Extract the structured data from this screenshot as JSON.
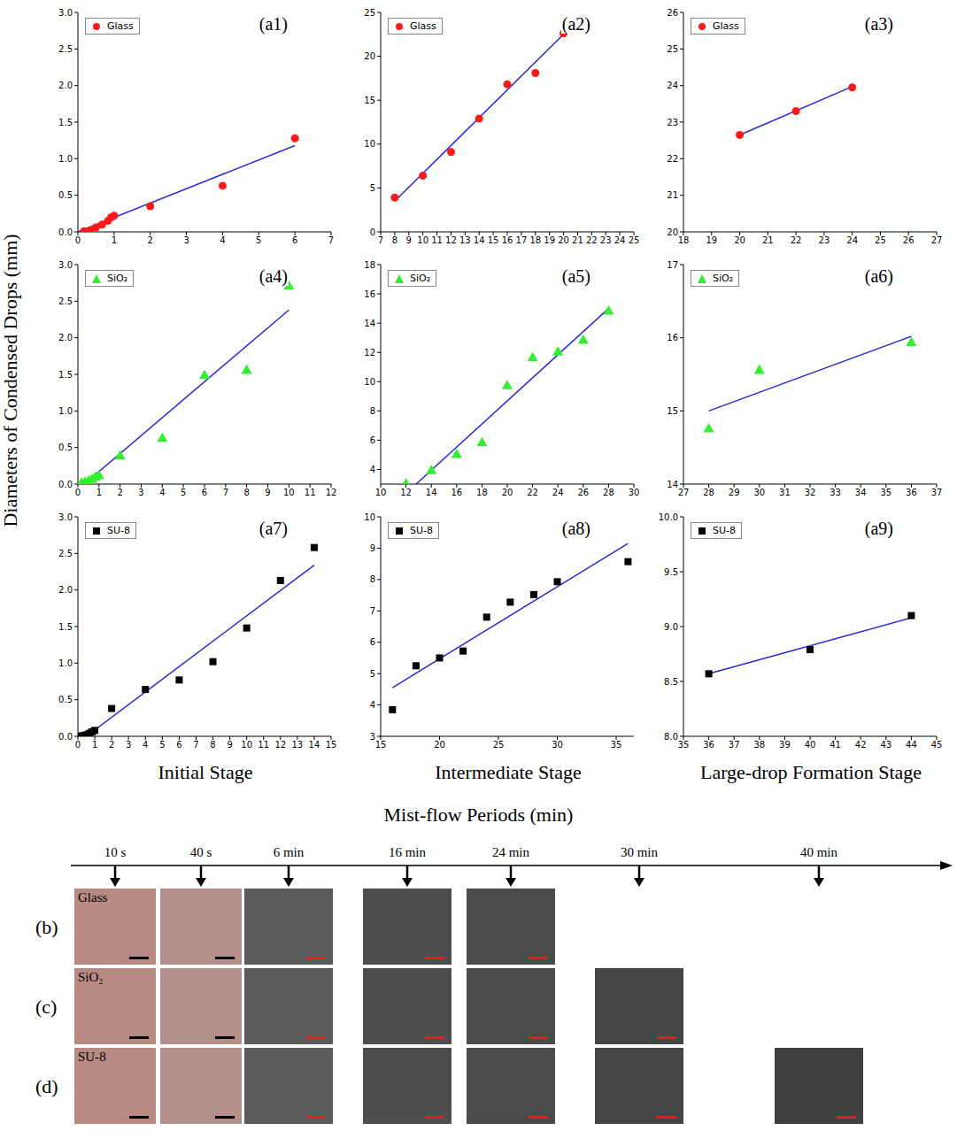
{
  "y_label": "Diameters of Condensed Drops (mm)",
  "stage_labels": [
    "Initial Stage",
    "Intermediate Stage",
    "Large-drop Formation Stage"
  ],
  "x_label": "Mist-flow Periods (min)",
  "timeline": [
    "10 s",
    "40 s",
    "6 min",
    "16 min",
    "24 min",
    "30 min",
    "40 min"
  ],
  "photo_rows": [
    {
      "label": "(b)",
      "substrate": "Glass",
      "photos_at": [
        "10 s",
        "40 s",
        "6 min",
        "16 min",
        "24 min"
      ]
    },
    {
      "label": "(c)",
      "substrate": "SiO₂",
      "photos_at": [
        "10 s",
        "40 s",
        "6 min",
        "16 min",
        "24 min",
        "30 min"
      ]
    },
    {
      "label": "(d)",
      "substrate": "SU-8",
      "photos_at": [
        "10 s",
        "40 s",
        "6 min",
        "16 min",
        "24 min",
        "30 min",
        "40 min"
      ]
    }
  ],
  "chart_data": [
    {
      "type": "scatter",
      "annotation": "(a1)",
      "legend": "upper left",
      "grid": false,
      "xlim": [
        0,
        7
      ],
      "xticks": [
        0,
        1,
        2,
        3,
        4,
        5,
        6,
        7
      ],
      "ylim": [
        0,
        3
      ],
      "yticks": [
        {
          "value": 0,
          "label": "0.0"
        },
        0.5,
        {
          "value": 1,
          "label": "1.0"
        },
        1.5,
        {
          "value": 2,
          "label": "2.0"
        },
        2.5,
        {
          "value": 3,
          "label": "3.0"
        }
      ],
      "series": [
        {
          "name": "Glass",
          "type": "scatter",
          "marker": "circle",
          "color": "#ff1a1a",
          "x": [
            0.17,
            0.33,
            0.5,
            0.67,
            0.83,
            0.92,
            1,
            2,
            4,
            6
          ],
          "values": [
            0.01,
            0.02,
            0.06,
            0.1,
            0.15,
            0.2,
            0.22,
            0.35,
            0.63,
            1.28
          ]
        },
        {
          "type": "line",
          "line_style": "solid",
          "color": "#2a2ad4",
          "x": [
            0,
            6
          ],
          "values": [
            0,
            1.18
          ]
        }
      ]
    },
    {
      "type": "scatter",
      "annotation": "(a2)",
      "legend": "upper left",
      "grid": false,
      "xlim": [
        7,
        25
      ],
      "xticks": [
        7,
        8,
        9,
        10,
        11,
        12,
        13,
        14,
        15,
        16,
        17,
        18,
        19,
        20,
        21,
        22,
        23,
        24,
        25
      ],
      "ylim": [
        0,
        25
      ],
      "yticks": [
        0,
        5,
        10,
        15,
        20,
        25
      ],
      "series": [
        {
          "name": "Glass",
          "type": "scatter",
          "marker": "circle",
          "color": "#ff1a1a",
          "x": [
            8,
            10,
            12,
            14,
            16,
            18,
            20
          ],
          "values": [
            3.9,
            6.4,
            9.1,
            12.9,
            16.8,
            18.1,
            22.6
          ]
        },
        {
          "type": "line",
          "line_style": "solid",
          "color": "#2a2ad4",
          "x": [
            8,
            20
          ],
          "values": [
            3.5,
            22.5
          ]
        }
      ]
    },
    {
      "type": "scatter",
      "annotation": "(a3)",
      "legend": "upper left",
      "grid": false,
      "xlim": [
        18,
        27
      ],
      "xticks": [
        18,
        19,
        20,
        21,
        22,
        23,
        24,
        25,
        26,
        27
      ],
      "ylim": [
        20,
        26
      ],
      "yticks": [
        20,
        21,
        22,
        23,
        24,
        25,
        26
      ],
      "series": [
        {
          "name": "Glass",
          "type": "scatter",
          "marker": "circle",
          "color": "#ff1a1a",
          "x": [
            20,
            22,
            24
          ],
          "values": [
            22.65,
            23.3,
            23.95
          ]
        },
        {
          "type": "line",
          "line_style": "solid",
          "color": "#2a2ad4",
          "x": [
            20,
            24
          ],
          "values": [
            22.65,
            23.97
          ]
        }
      ]
    },
    {
      "type": "scatter",
      "annotation": "(a4)",
      "legend": "upper left",
      "grid": false,
      "xlim": [
        0,
        12
      ],
      "xticks": [
        0,
        1,
        2,
        3,
        4,
        5,
        6,
        7,
        8,
        9,
        10,
        11,
        12
      ],
      "ylim": [
        0,
        3
      ],
      "yticks": [
        {
          "value": 0,
          "label": "0.0"
        },
        0.5,
        {
          "value": 1,
          "label": "1.0"
        },
        1.5,
        {
          "value": 2,
          "label": "2.0"
        },
        2.5,
        {
          "value": 3,
          "label": "3.0"
        }
      ],
      "series": [
        {
          "name": "SiO₂",
          "type": "scatter",
          "marker": "triangle",
          "color": "#33ee33",
          "x": [
            0.17,
            0.33,
            0.5,
            0.67,
            0.83,
            1,
            2,
            4,
            6,
            8,
            10
          ],
          "values": [
            0.01,
            0.02,
            0.04,
            0.06,
            0.09,
            0.11,
            0.38,
            0.62,
            1.48,
            1.55,
            2.7
          ]
        },
        {
          "type": "line",
          "line_style": "solid",
          "color": "#2a2ad4",
          "x": [
            0.3,
            10
          ],
          "values": [
            0,
            2.38
          ]
        }
      ]
    },
    {
      "type": "scatter",
      "annotation": "(a5)",
      "legend": "upper left",
      "grid": false,
      "xlim": [
        10,
        30
      ],
      "xticks": [
        10,
        12,
        14,
        16,
        18,
        20,
        22,
        24,
        26,
        28,
        30
      ],
      "ylim": [
        3,
        18
      ],
      "yticks": [
        4,
        6,
        8,
        10,
        12,
        14,
        16,
        18
      ],
      "series": [
        {
          "name": "SiO₂",
          "type": "scatter",
          "marker": "triangle",
          "color": "#33ee33",
          "x": [
            12,
            14,
            16,
            18,
            20,
            22,
            24,
            26,
            28
          ],
          "values": [
            3.0,
            3.9,
            5.0,
            5.8,
            9.7,
            11.6,
            12.0,
            12.8,
            14.8
          ]
        },
        {
          "type": "line",
          "line_style": "solid",
          "color": "#2a2ad4",
          "x": [
            12.8,
            28
          ],
          "values": [
            3,
            15
          ]
        }
      ]
    },
    {
      "type": "scatter",
      "annotation": "(a6)",
      "legend": "upper left",
      "grid": false,
      "xlim": [
        27,
        37
      ],
      "xticks": [
        27,
        28,
        29,
        30,
        31,
        32,
        33,
        34,
        35,
        36,
        37
      ],
      "ylim": [
        14,
        17
      ],
      "yticks": [
        14,
        15,
        16,
        17
      ],
      "series": [
        {
          "name": "SiO₂",
          "type": "scatter",
          "marker": "triangle",
          "color": "#33ee33",
          "x": [
            28,
            30,
            36
          ],
          "values": [
            14.75,
            15.55,
            15.93
          ]
        },
        {
          "type": "line",
          "line_style": "solid",
          "color": "#2a2ad4",
          "x": [
            28,
            36
          ],
          "values": [
            15,
            16.02
          ]
        }
      ]
    },
    {
      "type": "scatter",
      "annotation": "(a7)",
      "legend": "upper left",
      "grid": false,
      "xlim": [
        0,
        15
      ],
      "xticks": [
        0,
        1,
        2,
        3,
        4,
        5,
        6,
        7,
        8,
        9,
        10,
        11,
        12,
        13,
        14,
        15
      ],
      "ylim": [
        0,
        3
      ],
      "yticks": [
        {
          "value": 0,
          "label": "0.0"
        },
        0.5,
        {
          "value": 1,
          "label": "1.0"
        },
        1.5,
        {
          "value": 2,
          "label": "2.0"
        },
        2.5,
        {
          "value": 3,
          "label": "3.0"
        }
      ],
      "series": [
        {
          "name": "SU-8",
          "type": "scatter",
          "marker": "square",
          "color": "#000000",
          "x": [
            0.17,
            0.33,
            0.5,
            0.67,
            0.83,
            1,
            2,
            4,
            6,
            8,
            10,
            12,
            14
          ],
          "values": [
            0.005,
            0.01,
            0.02,
            0.04,
            0.06,
            0.08,
            0.38,
            0.64,
            0.77,
            1.02,
            1.48,
            2.13,
            2.58
          ]
        },
        {
          "type": "line",
          "line_style": "solid",
          "color": "#2a2ad4",
          "x": [
            0.5,
            14
          ],
          "values": [
            0,
            2.34
          ]
        }
      ]
    },
    {
      "type": "scatter",
      "annotation": "(a8)",
      "legend": "upper left",
      "grid": false,
      "xlim": [
        15,
        36.5
      ],
      "xticks": [
        15,
        20,
        25,
        30,
        35
      ],
      "ylim": [
        3,
        10
      ],
      "yticks": [
        3,
        4,
        5,
        6,
        7,
        8,
        9,
        10
      ],
      "series": [
        {
          "name": "SU-8",
          "type": "scatter",
          "marker": "square",
          "color": "#000000",
          "x": [
            16,
            18,
            20,
            22,
            24,
            26,
            28,
            30,
            36
          ],
          "values": [
            3.85,
            5.25,
            5.5,
            5.72,
            6.8,
            7.28,
            7.52,
            7.93,
            8.57
          ]
        },
        {
          "type": "line",
          "line_style": "solid",
          "color": "#2a2ad4",
          "x": [
            16,
            36
          ],
          "values": [
            4.55,
            9.15
          ]
        }
      ]
    },
    {
      "type": "scatter",
      "annotation": "(a9)",
      "legend": "upper left",
      "grid": false,
      "xlim": [
        35,
        45
      ],
      "xticks": [
        35,
        36,
        37,
        38,
        39,
        40,
        41,
        42,
        43,
        44,
        45
      ],
      "ylim": [
        8,
        10
      ],
      "yticks": [
        {
          "value": 8,
          "label": "8.0"
        },
        8.5,
        {
          "value": 9,
          "label": "9.0"
        },
        9.5,
        {
          "value": 10,
          "label": "10.0"
        }
      ],
      "series": [
        {
          "name": "SU-8",
          "type": "scatter",
          "marker": "square",
          "color": "#000000",
          "x": [
            36,
            40,
            44
          ],
          "values": [
            8.57,
            8.79,
            9.1
          ]
        },
        {
          "type": "line",
          "line_style": "solid",
          "color": "#2a2ad4",
          "x": [
            36,
            44
          ],
          "values": [
            8.57,
            9.08
          ]
        }
      ]
    }
  ]
}
